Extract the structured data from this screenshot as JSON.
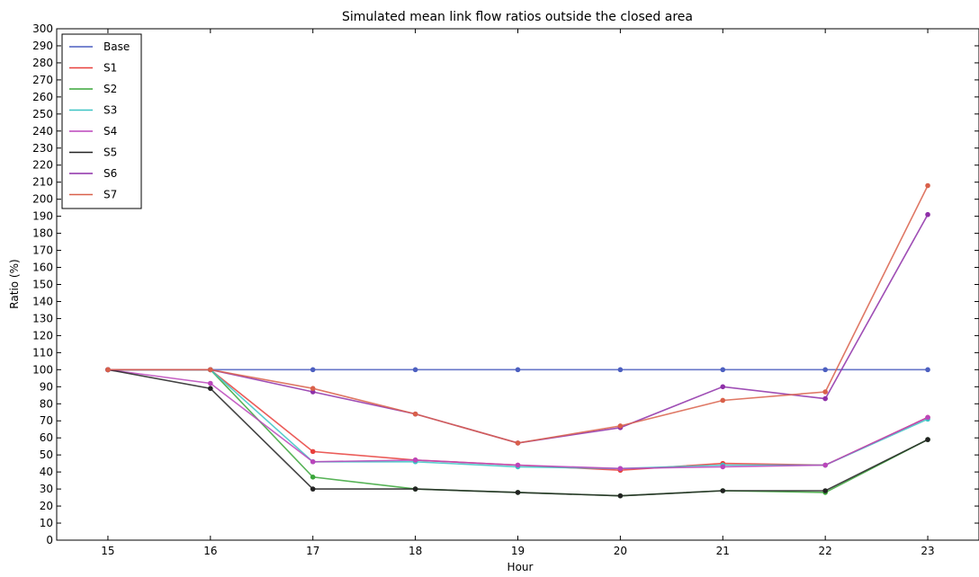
{
  "chart_data": {
    "type": "line",
    "title": "Simulated mean link flow ratios outside the closed area",
    "xlabel": "Hour",
    "ylabel": "Ratio (%)",
    "x": [
      15,
      16,
      17,
      18,
      19,
      20,
      21,
      22,
      23
    ],
    "xlim": [
      14.5,
      23.5
    ],
    "ylim": [
      0,
      300
    ],
    "xticks": [
      15,
      16,
      17,
      18,
      19,
      20,
      21,
      22,
      23
    ],
    "yticks": [
      0,
      10,
      20,
      30,
      40,
      50,
      60,
      70,
      80,
      90,
      100,
      110,
      120,
      130,
      140,
      150,
      160,
      170,
      180,
      190,
      200,
      210,
      220,
      230,
      240,
      250,
      260,
      270,
      280,
      290,
      300
    ],
    "grid": false,
    "legend_position": "top-left",
    "series": [
      {
        "name": "Base",
        "color": "#4c5fc0",
        "values": [
          100,
          100,
          100,
          100,
          100,
          100,
          100,
          100,
          100
        ]
      },
      {
        "name": "S1",
        "color": "#e8403c",
        "values": [
          100,
          100,
          52,
          47,
          44,
          41,
          45,
          44,
          72
        ]
      },
      {
        "name": "S2",
        "color": "#3aa63a",
        "values": [
          100,
          100,
          37,
          30,
          28,
          26,
          29,
          28,
          59
        ]
      },
      {
        "name": "S3",
        "color": "#3cc4c4",
        "values": [
          100,
          100,
          46,
          46,
          43,
          42,
          44,
          44,
          71
        ]
      },
      {
        "name": "S4",
        "color": "#bb45bb",
        "values": [
          100,
          92,
          46,
          47,
          44,
          42,
          43,
          44,
          72
        ]
      },
      {
        "name": "S5",
        "color": "#222222",
        "values": [
          100,
          89,
          30,
          30,
          28,
          26,
          29,
          29,
          59
        ]
      },
      {
        "name": "S6",
        "color": "#8e2fa8",
        "values": [
          100,
          100,
          87,
          74,
          57,
          66,
          90,
          83,
          191
        ]
      },
      {
        "name": "S7",
        "color": "#d9604a",
        "values": [
          100,
          100,
          89,
          74,
          57,
          67,
          82,
          87,
          208
        ]
      }
    ]
  }
}
